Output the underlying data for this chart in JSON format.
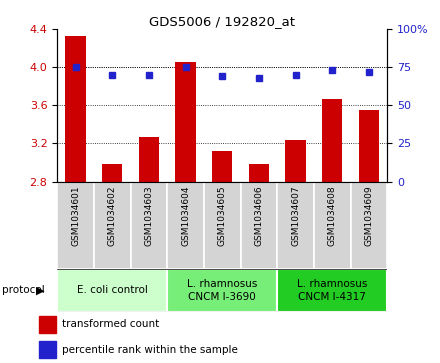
{
  "title": "GDS5006 / 192820_at",
  "samples": [
    "GSM1034601",
    "GSM1034602",
    "GSM1034603",
    "GSM1034604",
    "GSM1034605",
    "GSM1034606",
    "GSM1034607",
    "GSM1034608",
    "GSM1034609"
  ],
  "transformed_count": [
    4.33,
    2.98,
    3.27,
    4.05,
    3.12,
    2.98,
    3.24,
    3.67,
    3.55
  ],
  "percentile_rank": [
    75,
    70,
    70,
    75,
    69,
    68,
    70,
    73,
    72
  ],
  "ylim_left": [
    2.8,
    4.4
  ],
  "ylim_right": [
    0,
    100
  ],
  "yticks_left": [
    2.8,
    3.2,
    3.6,
    4.0,
    4.4
  ],
  "yticks_right": [
    0,
    25,
    50,
    75,
    100
  ],
  "bar_color": "#cc0000",
  "dot_color": "#2222cc",
  "grid_color": "#000000",
  "sample_box_color": "#d4d4d4",
  "group_colors": [
    "#ccffcc",
    "#77ee77",
    "#22cc22"
  ],
  "group_labels": [
    "E. coli control",
    "L. rhamnosus\nCNCM I-3690",
    "L. rhamnosus\nCNCM I-4317"
  ],
  "group_ranges": [
    [
      0,
      2
    ],
    [
      3,
      5
    ],
    [
      6,
      8
    ]
  ],
  "legend_bar_label": "transformed count",
  "legend_dot_label": "percentile rank within the sample",
  "protocol_label": "protocol"
}
